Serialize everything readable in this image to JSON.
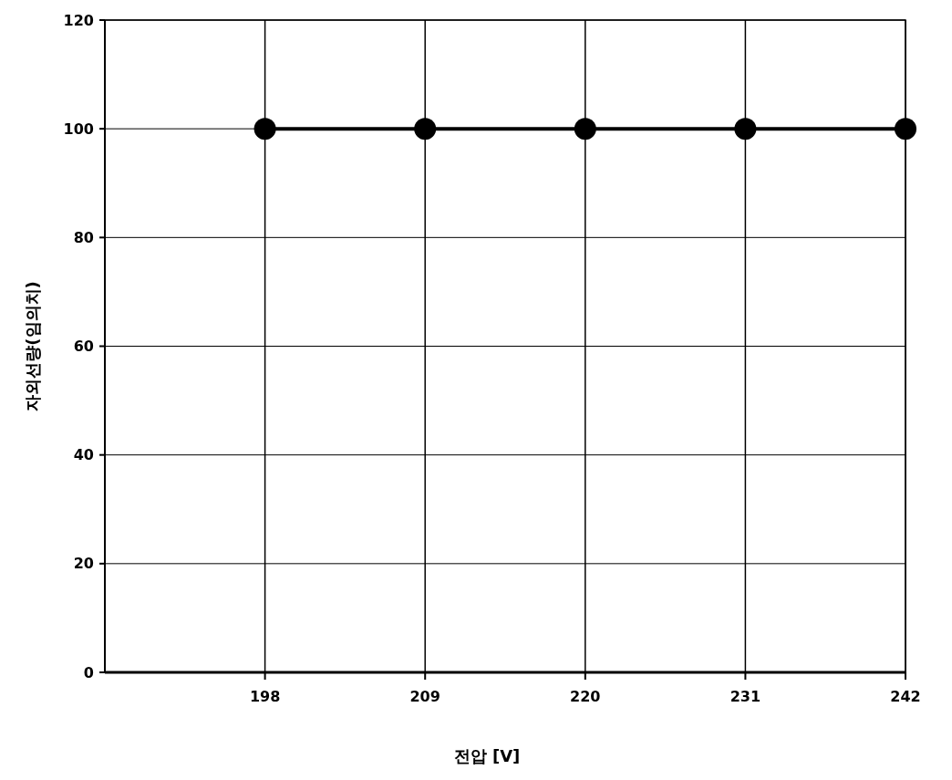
{
  "chart_data": {
    "type": "line",
    "xlabel": "전압 [V]",
    "ylabel": "자외선량(임의치)",
    "x": [
      198,
      209,
      220,
      231,
      242
    ],
    "values": [
      100,
      100,
      100,
      100,
      100
    ],
    "color": "#000000",
    "xlim": [
      187,
      242
    ],
    "xticks": [
      198,
      209,
      220,
      231,
      242
    ],
    "ylim": [
      0,
      120
    ],
    "yticks": [
      0,
      20,
      40,
      60,
      80,
      100,
      120
    ],
    "grid": true,
    "marker": "circle",
    "line_style": "solid"
  }
}
